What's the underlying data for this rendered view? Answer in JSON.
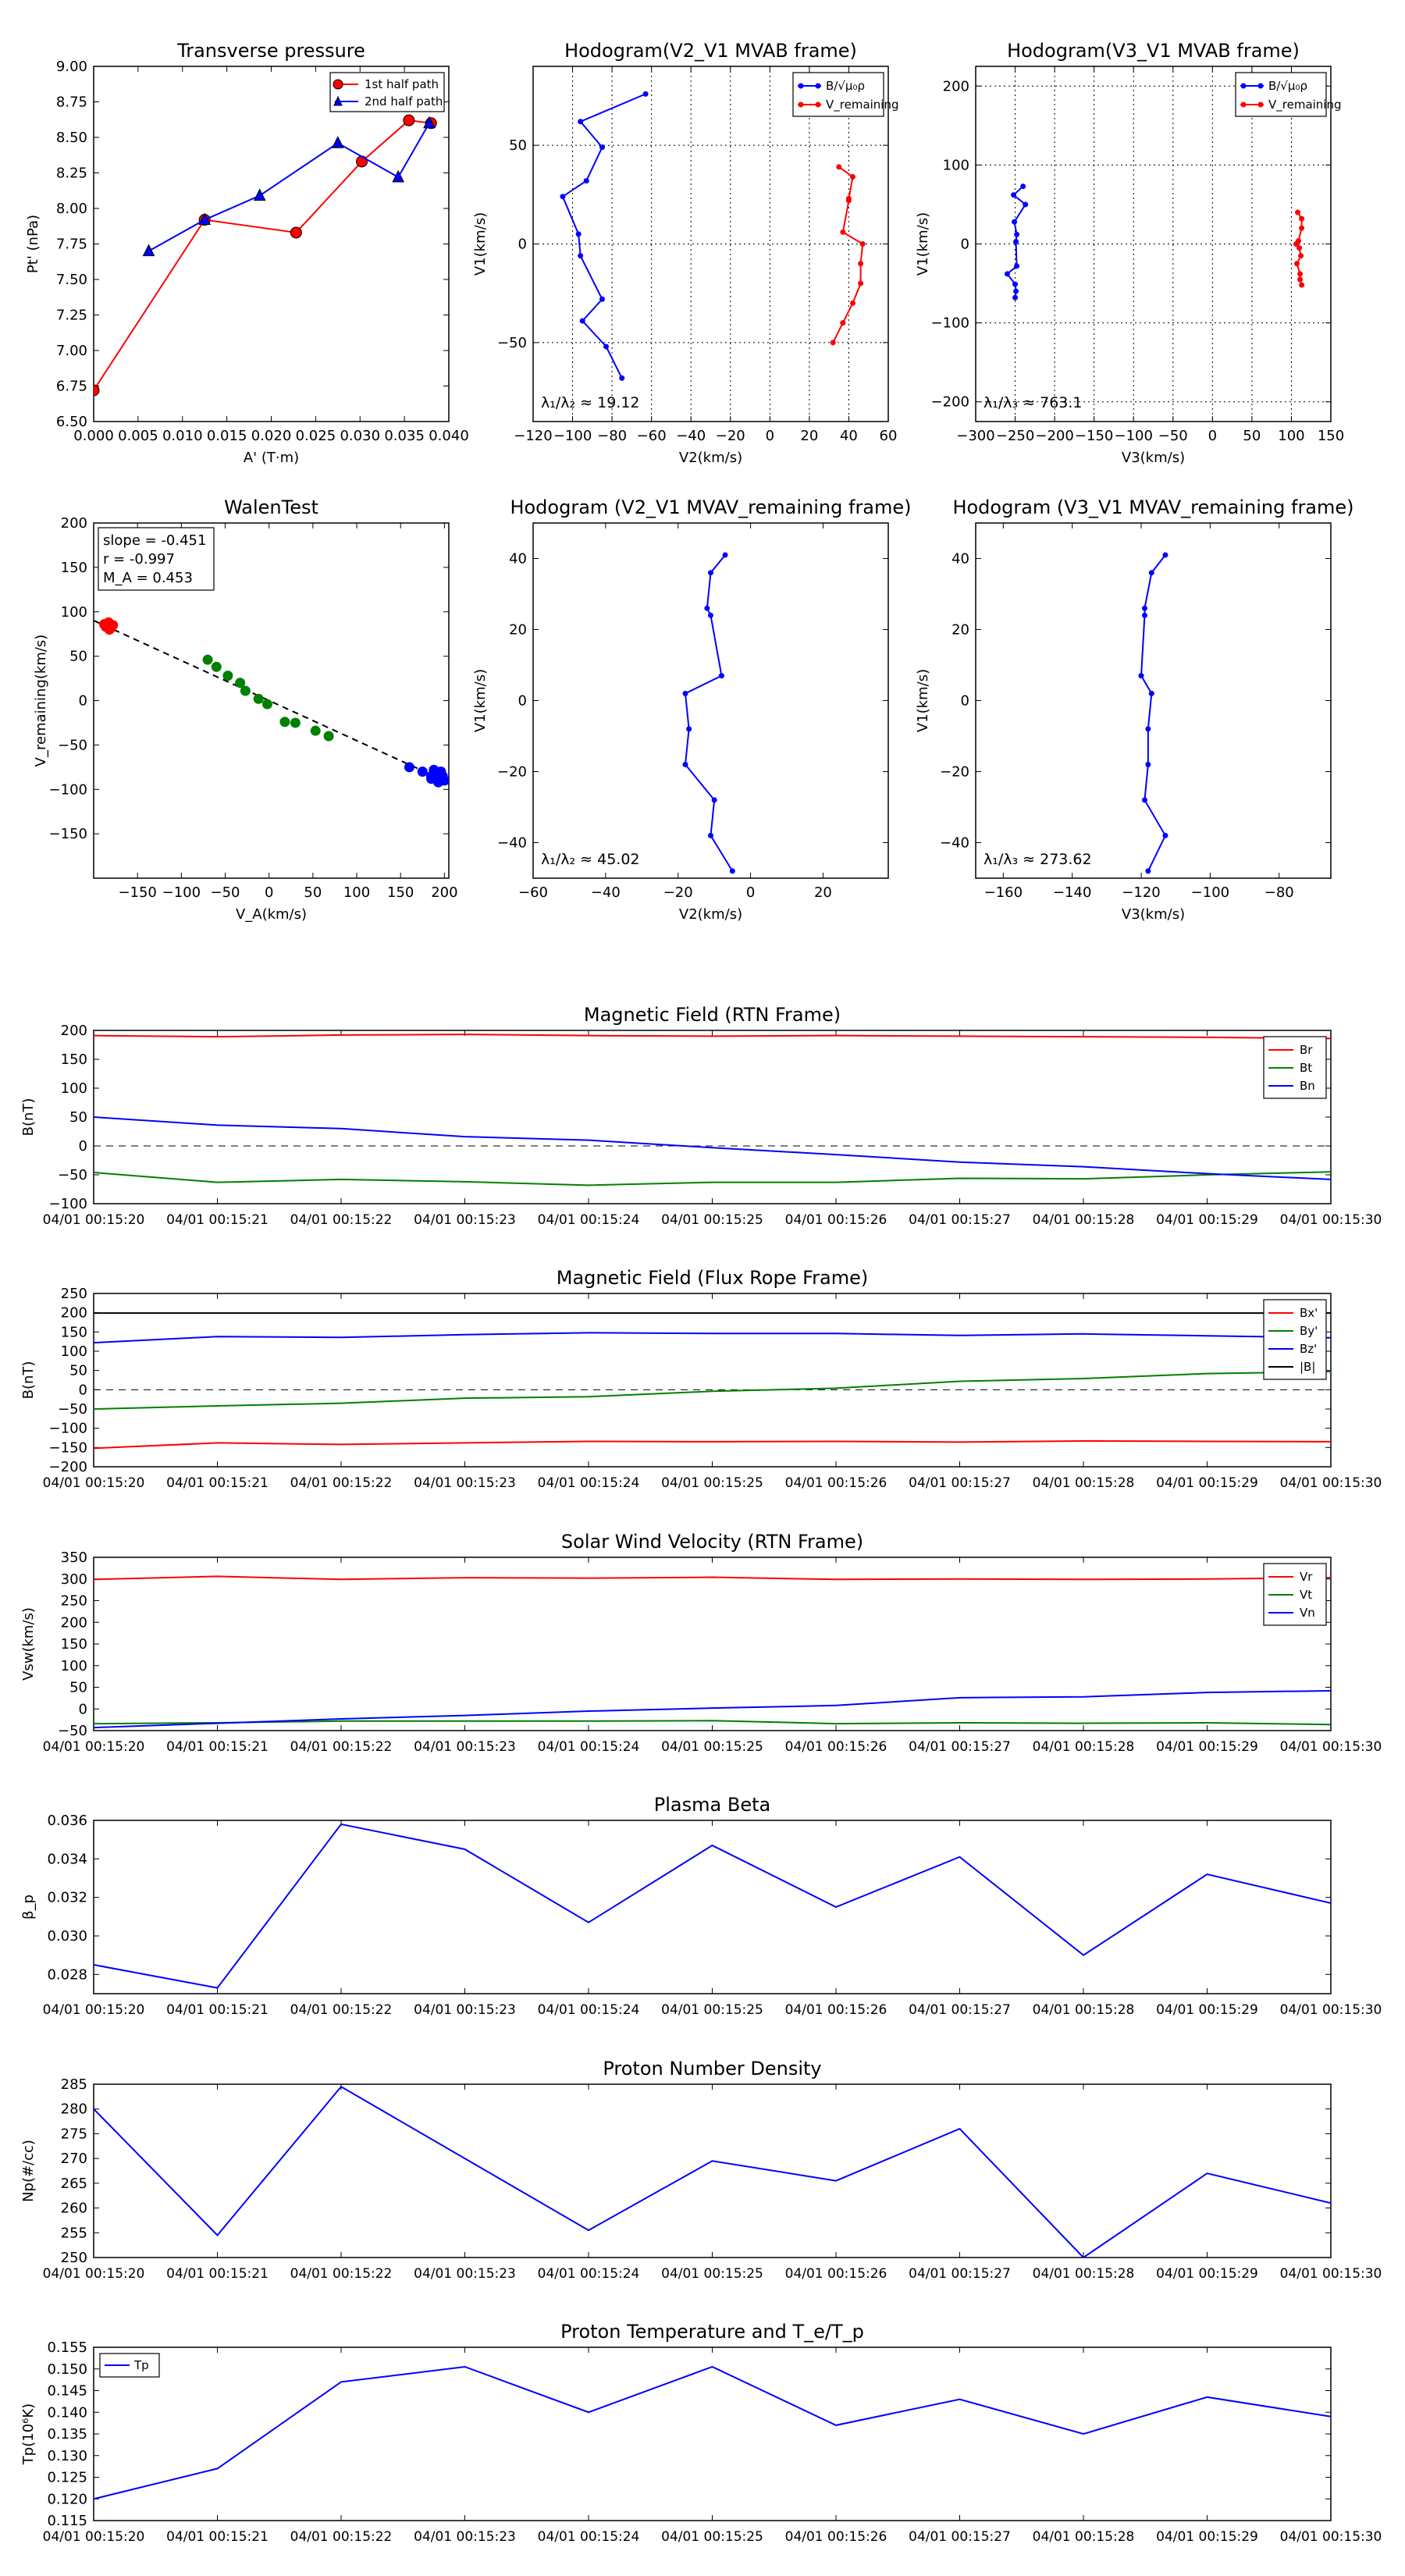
{
  "time_labels": [
    "04/01 00:15:20",
    "04/01 00:15:21",
    "04/01 00:15:22",
    "04/01 00:15:23",
    "04/01 00:15:24",
    "04/01 00:15:25",
    "04/01 00:15:26",
    "04/01 00:15:27",
    "04/01 00:15:28",
    "04/01 00:15:29",
    "04/01 00:15:30"
  ],
  "colors": {
    "red": "#ff0000",
    "blue": "#0000ff",
    "green": "#008000",
    "black": "#000000",
    "darkred": "#8b0000",
    "navy": "#000080"
  },
  "chart_data": [
    {
      "id": "tp",
      "type": "line",
      "title": "Transverse pressure",
      "xlabel": "A' (T·m)",
      "ylabel": "Pt' (nPa)",
      "xlim": [
        0,
        0.04
      ],
      "ylim": [
        6.5,
        9.0
      ],
      "xticks": [
        0,
        0.005,
        0.01,
        0.015,
        0.02,
        0.025,
        0.03,
        0.035,
        0.04
      ],
      "xtick_labels": [
        "0.000",
        "0.005",
        "0.010",
        "0.015",
        "0.020",
        "0.025",
        "0.030",
        "0.035",
        "0.040"
      ],
      "yticks": [
        6.5,
        6.75,
        7.0,
        7.25,
        7.5,
        7.75,
        8.0,
        8.25,
        8.5,
        8.75,
        9.0
      ],
      "ytick_labels": [
        "6.50",
        "6.75",
        "7.00",
        "7.25",
        "7.50",
        "7.75",
        "8.00",
        "8.25",
        "8.50",
        "8.75",
        "9.00"
      ],
      "legend": "top-right",
      "series": [
        {
          "name": "1st half path",
          "color": "#ff0000",
          "marker": "circle",
          "x": [
            0.0,
            0.0125,
            0.0228,
            0.0302,
            0.0355,
            0.038
          ],
          "y": [
            6.72,
            7.92,
            7.83,
            8.33,
            8.62,
            8.6
          ]
        },
        {
          "name": "2nd half path",
          "color": "#0000ff",
          "marker": "triangle",
          "x": [
            0.0062,
            0.0125,
            0.0187,
            0.0275,
            0.0343,
            0.0378
          ],
          "y": [
            7.7,
            7.92,
            8.09,
            8.46,
            8.22,
            8.6
          ]
        }
      ]
    },
    {
      "id": "h1",
      "type": "line",
      "title": "Hodogram(V2_V1 MVAB frame)",
      "xlabel": "V2(km/s)",
      "ylabel": "V1(km/s)",
      "xlim": [
        -120,
        60
      ],
      "ylim": [
        -90,
        90
      ],
      "xticks": [
        -120,
        -100,
        -80,
        -60,
        -40,
        -20,
        0,
        20,
        40,
        60
      ],
      "xtick_labels": [
        "−120",
        "−100",
        "−80",
        "−60",
        "−40",
        "−20",
        "0",
        "20",
        "40",
        "60"
      ],
      "yticks": [
        -50,
        0,
        50
      ],
      "ytick_labels": [
        "−50",
        "0",
        "50"
      ],
      "grid": true,
      "legend": "top-right",
      "legend_labels": [
        "B/√μ₀ρ",
        "V_remaining"
      ],
      "annotation": "λ₁/λ₂ ≈ 19.12",
      "series": [
        {
          "name": "B",
          "color": "#0000ff",
          "x": [
            -63,
            -96,
            -85,
            -93,
            -105,
            -97,
            -96,
            -85,
            -95,
            -83,
            -75
          ],
          "y": [
            76,
            62,
            49,
            32,
            24,
            5,
            -6,
            -28,
            -39,
            -52,
            -68
          ]
        },
        {
          "name": "V",
          "color": "#ff0000",
          "x": [
            35,
            42,
            40,
            40,
            37,
            47,
            46,
            46,
            42,
            37,
            32
          ],
          "y": [
            39,
            34,
            23,
            22,
            6,
            0,
            -10,
            -20,
            -30,
            -40,
            -50
          ]
        }
      ]
    },
    {
      "id": "h2",
      "type": "line",
      "title": "Hodogram(V3_V1 MVAB frame)",
      "xlabel": "V3(km/s)",
      "ylabel": "V1(km/s)",
      "xlim": [
        -300,
        150
      ],
      "ylim": [
        -225,
        225
      ],
      "xticks": [
        -300,
        -250,
        -200,
        -150,
        -100,
        -50,
        0,
        50,
        100,
        150
      ],
      "xtick_labels": [
        "−300",
        "−250",
        "−200",
        "−150",
        "−100",
        "−50",
        "0",
        "50",
        "100",
        "150"
      ],
      "yticks": [
        -200,
        -100,
        0,
        100,
        200
      ],
      "ytick_labels": [
        "−200",
        "−100",
        "0",
        "100",
        "200"
      ],
      "grid": true,
      "legend": "top-right",
      "legend_labels": [
        "B/√μ₀ρ",
        "V_remaining"
      ],
      "annotation": "λ₁/λ₃ ≈ 763.1",
      "series": [
        {
          "name": "B",
          "color": "#0000ff",
          "x": [
            -240,
            -252,
            -237,
            -251,
            -248,
            -249,
            -248,
            -260,
            -250,
            -249,
            -250
          ],
          "y": [
            73,
            62,
            50,
            28,
            12,
            3,
            -28,
            -38,
            -51,
            -60,
            -68
          ]
        },
        {
          "name": "V",
          "color": "#ff0000",
          "x": [
            108,
            113,
            113,
            109,
            106,
            110,
            112,
            107,
            111,
            111,
            113
          ],
          "y": [
            40,
            32,
            20,
            4,
            0,
            -5,
            -15,
            -25,
            -38,
            -45,
            -52
          ]
        }
      ]
    },
    {
      "id": "walen",
      "type": "scatter",
      "title": "WalenTest",
      "xlabel": "V_A(km/s)",
      "ylabel": "V_remaining(km/s)",
      "xlim": [
        -200,
        205
      ],
      "ylim": [
        -200,
        200
      ],
      "xticks": [
        -150,
        -100,
        -50,
        0,
        50,
        100,
        150,
        200
      ],
      "xtick_labels": [
        "−150",
        "−100",
        "−50",
        "0",
        "50",
        "100",
        "150",
        "200"
      ],
      "yticks": [
        -150,
        -100,
        -50,
        0,
        50,
        100,
        150,
        200
      ],
      "ytick_labels": [
        "−150",
        "−100",
        "−50",
        "0",
        "50",
        "100",
        "150",
        "200"
      ],
      "textbox": [
        "slope = -0.451",
        "r = -0.997",
        "M_A = 0.453"
      ],
      "fit": {
        "slope": -0.451,
        "intercept": 0,
        "x_range": [
          -200,
          200
        ]
      },
      "series": [
        {
          "name": "red",
          "color": "#ff0000",
          "x": [
            -188,
            -185,
            -183,
            -180,
            -178,
            -182,
            -186,
            -184,
            -181,
            -179
          ],
          "y": [
            86,
            84,
            88,
            82,
            85,
            80,
            83,
            87,
            81,
            84
          ]
        },
        {
          "name": "green",
          "color": "#008000",
          "x": [
            -70,
            -60,
            -47,
            -33,
            -27,
            -12,
            -2,
            18,
            30,
            53,
            68
          ],
          "y": [
            46,
            38,
            28,
            20,
            11,
            2,
            -4,
            -24,
            -25,
            -34,
            -40
          ]
        },
        {
          "name": "blue",
          "color": "#0000ff",
          "x": [
            160,
            175,
            185,
            188,
            192,
            195,
            198,
            200,
            193,
            185,
            196
          ],
          "y": [
            -75,
            -80,
            -85,
            -78,
            -82,
            -88,
            -85,
            -90,
            -92,
            -88,
            -80
          ]
        }
      ]
    },
    {
      "id": "h3",
      "type": "line",
      "title": "Hodogram (V2_V1 MVAV_remaining frame)",
      "xlabel": "V2(km/s)",
      "ylabel": "V1(km/s)",
      "xlim": [
        -60,
        38
      ],
      "ylim": [
        -50,
        50
      ],
      "xticks": [
        -60,
        -40,
        -20,
        0,
        20
      ],
      "xtick_labels": [
        "−60",
        "−40",
        "−20",
        "0",
        "20"
      ],
      "yticks": [
        -40,
        -20,
        0,
        20,
        40
      ],
      "ytick_labels": [
        "−40",
        "−20",
        "0",
        "20",
        "40"
      ],
      "annotation": "λ₁/λ₂ ≈ 45.02",
      "series": [
        {
          "name": "B",
          "color": "#0000ff",
          "x": [
            -7,
            -11,
            -12,
            -11,
            -8,
            -18,
            -17,
            -18,
            -10,
            -11,
            -5
          ],
          "y": [
            41,
            36,
            26,
            24,
            7,
            2,
            -8,
            -18,
            -28,
            -38,
            -48
          ]
        }
      ]
    },
    {
      "id": "h4",
      "type": "line",
      "title": "Hodogram (V3_V1 MVAV_remaining frame)",
      "xlabel": "V3(km/s)",
      "ylabel": "V1(km/s)",
      "xlim": [
        -168,
        -65
      ],
      "ylim": [
        -50,
        50
      ],
      "xticks": [
        -160,
        -140,
        -120,
        -100,
        -80
      ],
      "xtick_labels": [
        "−160",
        "−140",
        "−120",
        "−100",
        "−80"
      ],
      "yticks": [
        -40,
        -20,
        0,
        20,
        40
      ],
      "ytick_labels": [
        "−40",
        "−20",
        "0",
        "20",
        "40"
      ],
      "annotation": "λ₁/λ₃ ≈ 273.62",
      "series": [
        {
          "name": "B",
          "color": "#0000ff",
          "x": [
            -113,
            -117,
            -119,
            -119,
            -120,
            -117,
            -118,
            -118,
            -119,
            -113,
            -118
          ],
          "y": [
            41,
            36,
            26,
            24,
            7,
            2,
            -8,
            -18,
            -28,
            -38,
            -48
          ]
        }
      ]
    },
    {
      "id": "mag_rtn",
      "type": "line",
      "title": "Magnetic Field (RTN Frame)",
      "ylabel": "B(nT)",
      "ylim": [
        -100,
        200
      ],
      "yticks": [
        -100,
        -50,
        0,
        50,
        100,
        150,
        200
      ],
      "ytick_labels": [
        "−100",
        "−50",
        "0",
        "50",
        "100",
        "150",
        "200"
      ],
      "zero_line": true,
      "legend": "top-right",
      "series": [
        {
          "name": "Br",
          "color": "#ff0000",
          "values": [
            191,
            189,
            192,
            193,
            191,
            190,
            191,
            190,
            189,
            188,
            186
          ]
        },
        {
          "name": "Bt",
          "color": "#008000",
          "values": [
            -46,
            -63,
            -58,
            -62,
            -68,
            -63,
            -63,
            -56,
            -57,
            -50,
            -45
          ]
        },
        {
          "name": "Bn",
          "color": "#0000ff",
          "values": [
            50,
            36,
            30,
            16,
            10,
            -3,
            -15,
            -28,
            -36,
            -48,
            -58
          ]
        }
      ]
    },
    {
      "id": "mag_fr",
      "type": "line",
      "title": "Magnetic Field (Flux Rope Frame)",
      "ylabel": "B(nT)",
      "ylim": [
        -200,
        250
      ],
      "yticks": [
        -200,
        -150,
        -100,
        -50,
        0,
        50,
        100,
        150,
        200,
        250
      ],
      "ytick_labels": [
        "−200",
        "−150",
        "−100",
        "−50",
        "0",
        "50",
        "100",
        "150",
        "200",
        "250"
      ],
      "zero_line": true,
      "legend": "top-right",
      "legend_labels": [
        "Bx'",
        "By'",
        "Bz'",
        "|B|"
      ],
      "series": [
        {
          "name": "Bx'",
          "color": "#ff0000",
          "values": [
            -152,
            -138,
            -142,
            -138,
            -134,
            -135,
            -134,
            -136,
            -133,
            -134,
            -135
          ]
        },
        {
          "name": "By'",
          "color": "#008000",
          "values": [
            -50,
            -42,
            -35,
            -22,
            -18,
            -4,
            4,
            22,
            29,
            42,
            47
          ]
        },
        {
          "name": "Bz'",
          "color": "#0000ff",
          "values": [
            122,
            138,
            136,
            143,
            148,
            146,
            146,
            141,
            145,
            140,
            135
          ]
        },
        {
          "name": "|B|",
          "color": "#000000",
          "values": [
            199,
            199,
            199,
            199,
            199,
            199,
            199,
            199,
            199,
            199,
            199
          ]
        }
      ]
    },
    {
      "id": "vel",
      "type": "line",
      "title": "Solar Wind Velocity (RTN Frame)",
      "ylabel": "Vsw(km/s)",
      "ylim": [
        -50,
        350
      ],
      "yticks": [
        -50,
        0,
        50,
        100,
        150,
        200,
        250,
        300,
        350
      ],
      "ytick_labels": [
        "−50",
        "0",
        "50",
        "100",
        "150",
        "200",
        "250",
        "300",
        "350"
      ],
      "legend": "top-right",
      "series": [
        {
          "name": "Vr",
          "color": "#ff0000",
          "values": [
            299,
            306,
            299,
            303,
            302,
            304,
            299,
            300,
            299,
            300,
            303
          ]
        },
        {
          "name": "Vt",
          "color": "#008000",
          "values": [
            -34,
            -32,
            -28,
            -28,
            -28,
            -27,
            -34,
            -32,
            -33,
            -32,
            -36
          ]
        },
        {
          "name": "Vn",
          "color": "#0000ff",
          "values": [
            -43,
            -33,
            -23,
            -15,
            -5,
            2,
            8,
            26,
            28,
            38,
            42
          ]
        }
      ]
    },
    {
      "id": "beta",
      "type": "line",
      "title": "Plasma Beta",
      "ylabel": "β_p",
      "ylim": [
        0.027,
        0.036
      ],
      "yticks": [
        0.028,
        0.03,
        0.032,
        0.034,
        0.036
      ],
      "ytick_labels": [
        "0.028",
        "0.030",
        "0.032",
        "0.034",
        "0.036"
      ],
      "series": [
        {
          "name": "beta",
          "color": "#0000ff",
          "values": [
            0.0285,
            0.0273,
            0.0358,
            0.0345,
            0.0307,
            0.0347,
            0.0315,
            0.0341,
            0.029,
            0.0332,
            0.0317
          ]
        }
      ]
    },
    {
      "id": "np",
      "type": "line",
      "title": "Proton Number Density",
      "ylabel": "Np(#/cc)",
      "ylim": [
        250,
        285
      ],
      "yticks": [
        250,
        255,
        260,
        265,
        270,
        275,
        280,
        285
      ],
      "ytick_labels": [
        "250",
        "255",
        "260",
        "265",
        "270",
        "275",
        "280",
        "285"
      ],
      "series": [
        {
          "name": "Np",
          "color": "#0000ff",
          "values": [
            280,
            254.5,
            284.5,
            270,
            255.5,
            269.5,
            265.5,
            276,
            250,
            267,
            261
          ]
        }
      ]
    },
    {
      "id": "tp2",
      "type": "line",
      "title": "Proton Temperature and T_e/T_p",
      "ylabel": "Tp(10⁶K)",
      "ylim": [
        0.115,
        0.155
      ],
      "yticks": [
        0.115,
        0.12,
        0.125,
        0.13,
        0.135,
        0.14,
        0.145,
        0.15,
        0.155
      ],
      "ytick_labels": [
        "0.115",
        "0.120",
        "0.125",
        "0.130",
        "0.135",
        "0.140",
        "0.145",
        "0.150",
        "0.155"
      ],
      "legend": "top-left",
      "series": [
        {
          "name": "Tp",
          "color": "#0000ff",
          "values": [
            0.12,
            0.127,
            0.147,
            0.1505,
            0.14,
            0.1505,
            0.137,
            0.143,
            0.135,
            0.1435,
            0.139
          ]
        }
      ]
    }
  ]
}
